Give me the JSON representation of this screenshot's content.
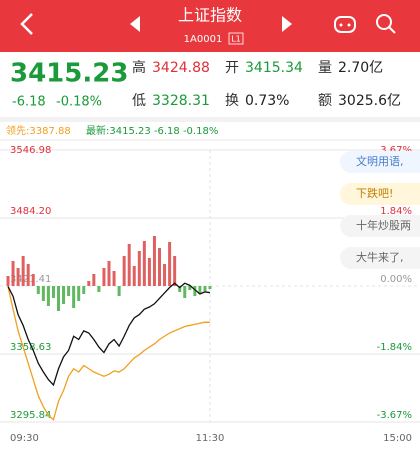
{
  "header": {
    "title": "上证指数",
    "code": "1A0001",
    "level": "L1"
  },
  "quote": {
    "price": "3415.23",
    "change": "-6.18",
    "change_pct": "-0.18%",
    "fields": [
      {
        "label": "高",
        "value": "3424.88",
        "color": "#e0303a"
      },
      {
        "label": "开",
        "value": "3415.34",
        "color": "#1a9a3a"
      },
      {
        "label": "量",
        "value": "2.70亿",
        "color": "#222222"
      },
      {
        "label": "低",
        "value": "3328.31",
        "color": "#1a9a3a"
      },
      {
        "label": "换",
        "value": "0.73%",
        "color": "#222222"
      },
      {
        "label": "额",
        "value": "3025.6亿",
        "color": "#222222"
      }
    ]
  },
  "legend": {
    "lead": "领先:3387.88",
    "latest": "最新:3415.23 -6.18 -0.18%"
  },
  "danmaku": [
    "文明用语,",
    "下跌吧!",
    "十年炒股两",
    "大牛来了,"
  ],
  "chart_data": {
    "type": "line",
    "x": [
      0,
      3,
      6,
      9,
      12,
      15,
      18,
      21,
      24,
      27,
      30,
      33,
      36,
      39,
      42,
      45,
      48,
      51,
      54,
      57,
      60,
      63,
      66,
      69,
      72,
      75,
      78,
      81,
      84,
      87,
      90,
      93,
      96,
      99,
      102,
      105,
      108,
      111,
      114,
      117,
      120
    ],
    "series": [
      {
        "color": "#f0a020",
        "values": [
          3421,
          3400,
          3380,
          3365,
          3350,
          3335,
          3320,
          3310,
          3302,
          3298,
          3315,
          3325,
          3338,
          3345,
          3342,
          3348,
          3345,
          3342,
          3340,
          3338,
          3340,
          3343,
          3342,
          3345,
          3350,
          3355,
          3358,
          3362,
          3365,
          3368,
          3372,
          3375,
          3378,
          3380,
          3382,
          3384,
          3385,
          3386,
          3387,
          3388,
          3387.88
        ]
      },
      {
        "color": "#111111",
        "values": [
          3421,
          3412,
          3395,
          3385,
          3372,
          3362,
          3350,
          3342,
          3335,
          3330,
          3345,
          3356,
          3362,
          3375,
          3372,
          3380,
          3378,
          3372,
          3365,
          3360,
          3368,
          3372,
          3366,
          3375,
          3385,
          3392,
          3395,
          3400,
          3402,
          3405,
          3410,
          3415,
          3420,
          3424,
          3420,
          3424,
          3422,
          3418,
          3414,
          3416,
          3415.23
        ]
      }
    ],
    "bars": {
      "values": [
        10,
        25,
        18,
        30,
        22,
        12,
        -8,
        -15,
        -20,
        -12,
        -25,
        -18,
        -10,
        -22,
        -15,
        -8,
        5,
        12,
        -6,
        18,
        25,
        15,
        -10,
        30,
        42,
        20,
        35,
        45,
        28,
        50,
        38,
        22,
        44,
        30,
        -6,
        -12,
        -4,
        -10,
        -8,
        -5,
        -3
      ],
      "ylim": [
        -60,
        60
      ],
      "up_color": "#e06060",
      "down_color": "#60b860"
    },
    "xlim": [
      0,
      240
    ],
    "xticks": [
      {
        "value": 0,
        "label": "09:30"
      },
      {
        "value": 120,
        "label": "11:30"
      },
      {
        "value": 240,
        "label": "15:00"
      }
    ],
    "ylim": [
      3295.84,
      3546.98
    ],
    "yticks": [
      3546.98,
      {
        "value": 3484.2,
        "label": "3484.20"
      },
      3421.41,
      3358.63,
      3295.84
    ],
    "y2lim": [
      -3.67,
      3.67
    ],
    "y2ticks": [
      {
        "value": 3.67,
        "label": "3.67%"
      },
      {
        "value": 1.84,
        "label": "1.84%"
      },
      {
        "value": 0,
        "label": "0.00%"
      },
      {
        "value": -1.84,
        "label": "-1.84%"
      },
      {
        "value": -3.67,
        "label": "-3.67%"
      }
    ],
    "up_color": "#e0303a",
    "down_color": "#1a9a3a",
    "grid": true
  }
}
